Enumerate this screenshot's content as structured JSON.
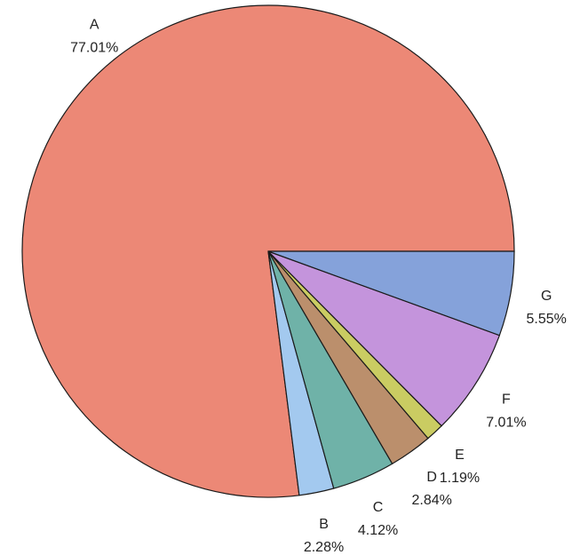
{
  "chart_data": {
    "type": "pie",
    "title": "",
    "slices": [
      {
        "label": "A",
        "value": 77.01,
        "display": "77.01%",
        "color": "#ec8876"
      },
      {
        "label": "B",
        "value": 2.28,
        "display": "2.28%",
        "color": "#a3c9ef"
      },
      {
        "label": "C",
        "value": 4.12,
        "display": "4.12%",
        "color": "#6fb2a8"
      },
      {
        "label": "D",
        "value": 2.84,
        "display": "2.84%",
        "color": "#bb8f6c"
      },
      {
        "label": "E",
        "value": 1.19,
        "display": "1.19%",
        "color": "#cacc62"
      },
      {
        "label": "F",
        "value": 7.01,
        "display": "7.01%",
        "color": "#c494dc"
      },
      {
        "label": "G",
        "value": 5.55,
        "display": "5.55%",
        "color": "#85a2da"
      }
    ]
  }
}
